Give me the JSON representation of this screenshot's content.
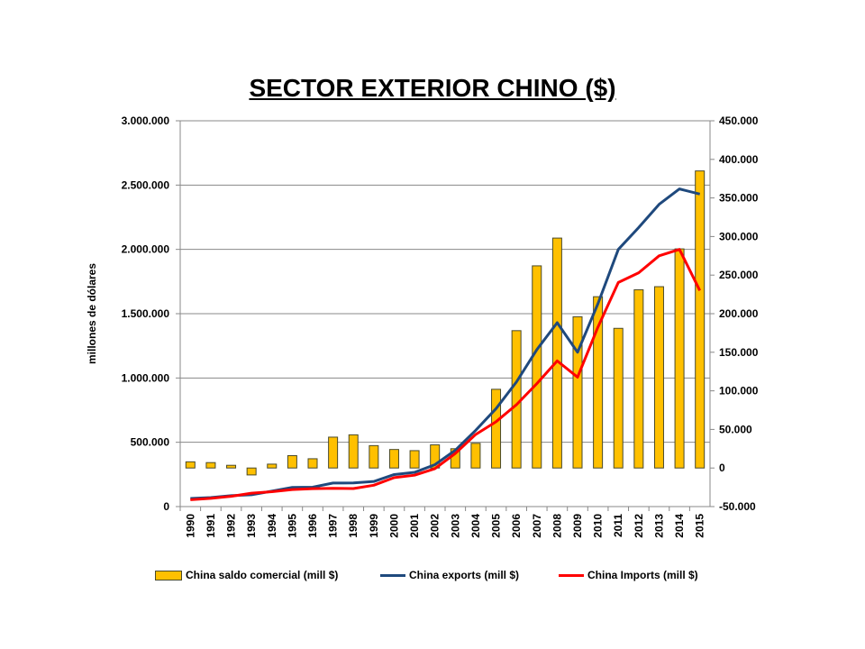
{
  "title": "SECTOR EXTERIOR CHINO ($)",
  "chart_data": {
    "type": "bar+line",
    "title": "SECTOR EXTERIOR CHINO ($)",
    "ylabel": "millones de dólares",
    "xlabel": "",
    "categories": [
      "1990",
      "1991",
      "1992",
      "1993",
      "1994",
      "1995",
      "1996",
      "1997",
      "1998",
      "1999",
      "2000",
      "2001",
      "2002",
      "2003",
      "2004",
      "2005",
      "2006",
      "2007",
      "2008",
      "2009",
      "2010",
      "2011",
      "2012",
      "2013",
      "2014",
      "2015"
    ],
    "y_left": {
      "ylim": [
        0,
        3000000
      ],
      "ticks": [
        0,
        500000,
        1000000,
        1500000,
        2000000,
        2500000,
        3000000
      ],
      "tick_labels": [
        "0",
        "500.000",
        "1.000.000",
        "1.500.000",
        "2.000.000",
        "2.500.000",
        "3.000.000"
      ]
    },
    "y_right": {
      "ylim": [
        -50000,
        450000
      ],
      "ticks": [
        -50000,
        0,
        50000,
        100000,
        150000,
        200000,
        250000,
        300000,
        350000,
        400000,
        450000
      ],
      "tick_labels": [
        "-50.000",
        "0",
        "50.000",
        "100.000",
        "150.000",
        "200.000",
        "250.000",
        "300.000",
        "350.000",
        "400.000",
        "450.000"
      ]
    },
    "grid": true,
    "legend_position": "bottom",
    "series": [
      {
        "name": "China saldo comercial (mill $)",
        "type": "bar",
        "axis": "right",
        "color": "#FFC000",
        "values": [
          8000,
          7000,
          3500,
          -9000,
          5000,
          16000,
          12000,
          40000,
          43000,
          29000,
          24000,
          22500,
          30000,
          25000,
          32000,
          102000,
          178000,
          262000,
          298000,
          196000,
          222000,
          181000,
          231000,
          235000,
          284000,
          385000
        ]
      },
      {
        "name": "China exports (mill $)",
        "type": "line",
        "axis": "left",
        "color": "#1F497D",
        "values": [
          63000,
          70000,
          85000,
          92000,
          120000,
          149000,
          151000,
          183000,
          184000,
          195000,
          249000,
          266000,
          326000,
          438000,
          593000,
          762000,
          969000,
          1220000,
          1430000,
          1200000,
          1578000,
          2000000,
          2170000,
          2350000,
          2470000,
          2430000
        ]
      },
      {
        "name": "China Imports (mill $)",
        "type": "line",
        "axis": "left",
        "color": "#FF0000",
        "values": [
          53000,
          64000,
          80000,
          104000,
          116000,
          132000,
          139000,
          142000,
          140000,
          166000,
          225000,
          244000,
          295000,
          413000,
          561000,
          660000,
          792000,
          956000,
          1133000,
          1006000,
          1396000,
          1743000,
          1818000,
          1950000,
          2000000,
          1680000
        ]
      }
    ]
  }
}
